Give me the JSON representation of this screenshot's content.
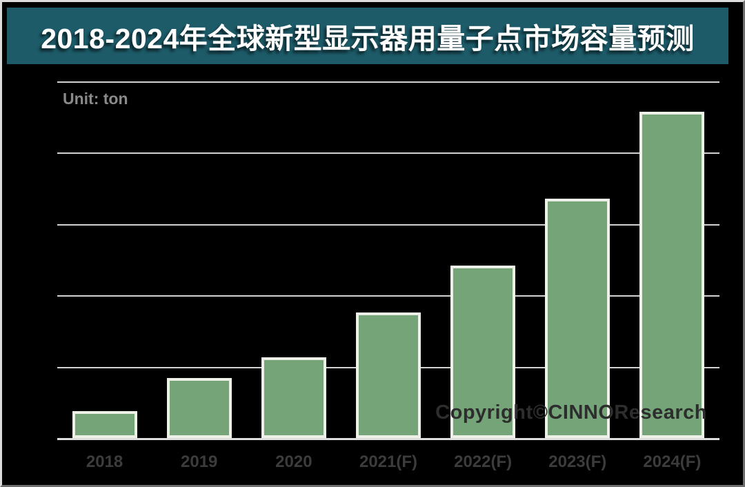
{
  "header": {
    "title": "2018-2024年全球新型显示器用量子点市场容量预测"
  },
  "chart_area": {
    "unit_label": "Unit: ton",
    "watermark": "Copyright©CINNOResearch"
  },
  "colors": {
    "canvas_bg": "#000000",
    "title_bg": "#1d5b69",
    "title_text": "#ffffff",
    "unit_text": "#8a8a8a",
    "gridline": "#d2d2d2",
    "axis_line": "#dedede",
    "bar_fill": "#74a478",
    "bar_border": "#eef1e7",
    "category_text": "#3c3c3c",
    "watermark_text": "#2d2d2d"
  },
  "chart_data": {
    "type": "bar",
    "title": "2018-2024年全球新型显示器用量子点市场容量预测",
    "unit": "ton",
    "categories": [
      "2018",
      "2019",
      "2020",
      "2021(F)",
      "2022(F)",
      "2023(F)",
      "2024(F)"
    ],
    "values": [
      0.38,
      0.84,
      1.13,
      1.76,
      2.42,
      3.36,
      4.57
    ],
    "ylim": [
      0,
      5
    ],
    "gridline_count": 5,
    "value_axis_tick_labels_visible": false,
    "note": "y-axis has no numeric tick labels; values estimated in units of one horizontal gridline interval (5 intervals between baseline and top gridline)",
    "grid": true,
    "legend": false
  }
}
